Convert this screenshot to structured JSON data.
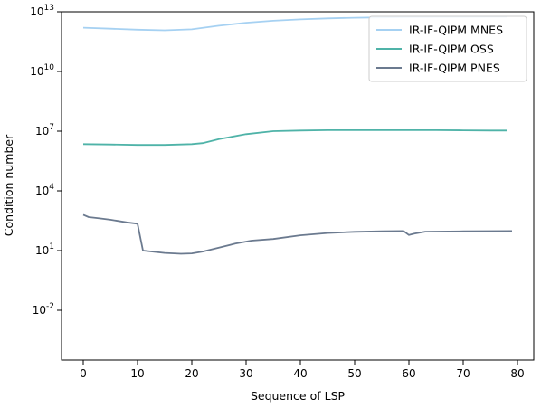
{
  "chart_data": {
    "type": "line",
    "title": "",
    "xlabel": "Sequence of LSP",
    "ylabel": "Condition number",
    "yscale": "log",
    "xlim": [
      -4,
      83
    ],
    "ylim_exponent": [
      -4.5,
      13
    ],
    "x_ticks": [
      0,
      10,
      20,
      30,
      40,
      50,
      60,
      70,
      80
    ],
    "y_ticks": [
      {
        "base": "10",
        "exp": "-2",
        "value": -2
      },
      {
        "base": "10",
        "exp": "1",
        "value": 1
      },
      {
        "base": "10",
        "exp": "4",
        "value": 4
      },
      {
        "base": "10",
        "exp": "7",
        "value": 7
      },
      {
        "base": "10",
        "exp": "10",
        "value": 10
      },
      {
        "base": "10",
        "exp": "13",
        "value": 13
      }
    ],
    "grid": false,
    "legend_position": "top-right",
    "series": [
      {
        "name": "IR-IF-QIPM MNES",
        "color": "#a6d1f2",
        "points_x_log10y": [
          [
            0,
            12.2
          ],
          [
            5,
            12.15
          ],
          [
            10,
            12.1
          ],
          [
            15,
            12.07
          ],
          [
            20,
            12.12
          ],
          [
            25,
            12.3
          ],
          [
            30,
            12.45
          ],
          [
            35,
            12.55
          ],
          [
            40,
            12.62
          ],
          [
            45,
            12.67
          ],
          [
            50,
            12.7
          ],
          [
            55,
            12.72
          ],
          [
            60,
            12.73
          ],
          [
            65,
            12.74
          ],
          [
            70,
            12.74
          ],
          [
            75,
            12.75
          ],
          [
            78,
            12.75
          ]
        ]
      },
      {
        "name": "IR-IF-QIPM OSS",
        "color": "#4fb3a8",
        "points_x_log10y": [
          [
            0,
            6.35
          ],
          [
            5,
            6.33
          ],
          [
            10,
            6.31
          ],
          [
            15,
            6.31
          ],
          [
            20,
            6.35
          ],
          [
            22,
            6.4
          ],
          [
            25,
            6.6
          ],
          [
            30,
            6.85
          ],
          [
            35,
            7.0
          ],
          [
            40,
            7.03
          ],
          [
            45,
            7.05
          ],
          [
            50,
            7.05
          ],
          [
            55,
            7.05
          ],
          [
            60,
            7.05
          ],
          [
            65,
            7.05
          ],
          [
            70,
            7.04
          ],
          [
            75,
            7.03
          ],
          [
            78,
            7.03
          ]
        ]
      },
      {
        "name": "IR-IF-QIPM PNES",
        "color": "#6b7a8f",
        "points_x_log10y": [
          [
            0,
            2.8
          ],
          [
            1,
            2.68
          ],
          [
            3,
            2.62
          ],
          [
            5,
            2.55
          ],
          [
            8,
            2.42
          ],
          [
            10,
            2.35
          ],
          [
            11,
            1.0
          ],
          [
            15,
            0.88
          ],
          [
            18,
            0.84
          ],
          [
            20,
            0.86
          ],
          [
            22,
            0.95
          ],
          [
            25,
            1.15
          ],
          [
            28,
            1.35
          ],
          [
            31,
            1.5
          ],
          [
            35,
            1.58
          ],
          [
            40,
            1.77
          ],
          [
            45,
            1.88
          ],
          [
            50,
            1.94
          ],
          [
            55,
            1.97
          ],
          [
            59,
            1.98
          ],
          [
            60,
            1.78
          ],
          [
            61,
            1.85
          ],
          [
            63,
            1.95
          ],
          [
            70,
            1.97
          ],
          [
            79,
            1.98
          ]
        ]
      }
    ]
  }
}
